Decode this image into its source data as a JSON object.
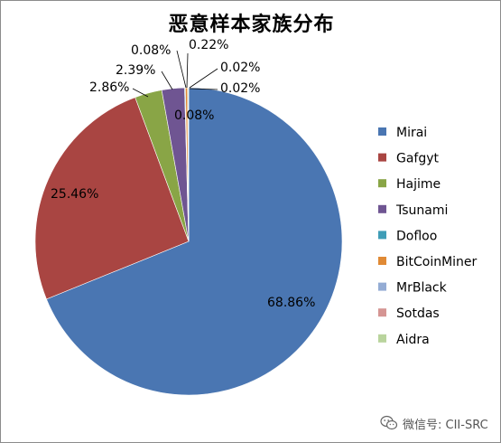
{
  "chart_data": {
    "type": "pie",
    "title": "恶意样本家族分布",
    "categories": [
      "Mirai",
      "Gafgyt",
      "Hajime",
      "Tsunami",
      "Dofloo",
      "BitCoinMiner",
      "MrBlack",
      "Sotdas",
      "Aidra"
    ],
    "values": [
      68.86,
      25.46,
      2.86,
      2.39,
      0.08,
      0.22,
      0.02,
      0.02,
      0.08
    ],
    "labels": [
      "68.86%",
      "25.46%",
      "2.86%",
      "2.39%",
      "0.08%",
      "0.22%",
      "0.02%",
      "0.02%",
      "0.08%"
    ],
    "colors": [
      "#4a76b2",
      "#a94542",
      "#89a546",
      "#6f5592",
      "#3f9db7",
      "#e08a35",
      "#94acd4",
      "#d59593",
      "#b9d49d"
    ],
    "legend": "right"
  },
  "watermark": {
    "icon": "wechat-icon",
    "text": "微信号: CII-SRC"
  }
}
